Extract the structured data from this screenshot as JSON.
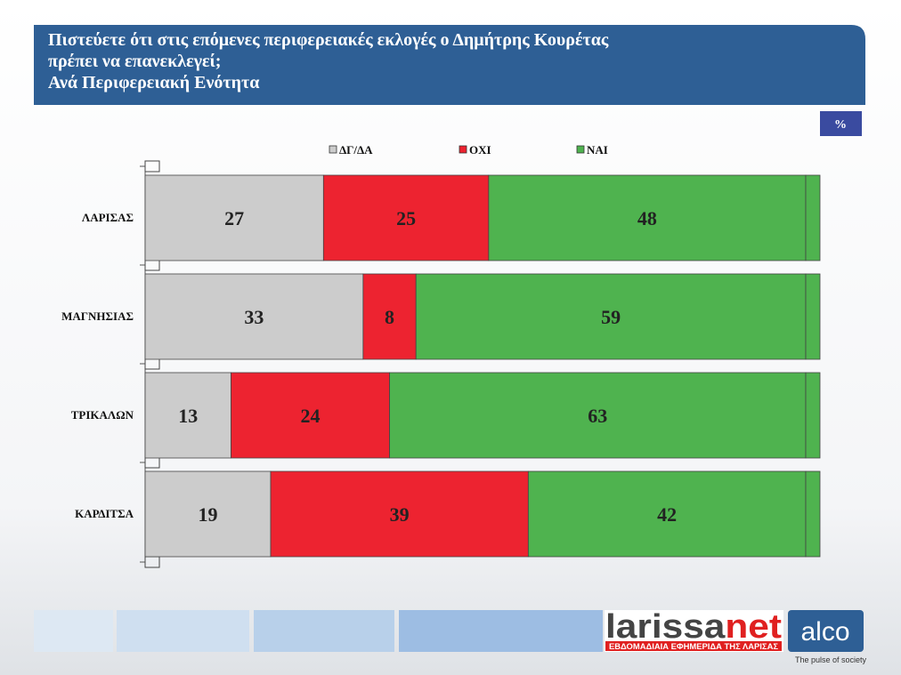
{
  "chart_data": {
    "type": "stacked-bar-horizontal",
    "title": [
      "Πιστεύετε ότι στις επόμενες περιφερειακές εκλογές ο Δημήτρης Κουρέτας",
      "πρέπει να επανεκλεγεί;"
    ],
    "subtitle": "Ανά Περιφερειακή Ενότητα",
    "unit_badge": "%",
    "categories": [
      "ΛΑΡΙΣΑΣ",
      "ΜΑΓΝΗΣΙΑΣ",
      "ΤΡΙΚΑΛΩΝ",
      "ΚΑΡΔΙΤΣΑ"
    ],
    "series": [
      {
        "name": "ΔΓ/ΔΑ",
        "color": "#cccccc",
        "values": [
          27,
          33,
          13,
          19
        ]
      },
      {
        "name": "ΟΧΙ",
        "color": "#ed2330",
        "values": [
          25,
          8,
          24,
          39
        ]
      },
      {
        "name": "ΝΑΙ",
        "color": "#4fb34f",
        "values": [
          48,
          59,
          63,
          42
        ]
      }
    ],
    "xlim": [
      0,
      100
    ]
  },
  "footer": {
    "brand": [
      "larissa",
      "net"
    ],
    "brand_tagline": "ΕΒΔΟΜΑΔΙΑΙΑ ΕΦΗΜΕΡΙΔΑ ΤΗΣ ΛΑΡΙΣΑΣ",
    "company": "alco",
    "company_tagline": "The pulse of society"
  }
}
